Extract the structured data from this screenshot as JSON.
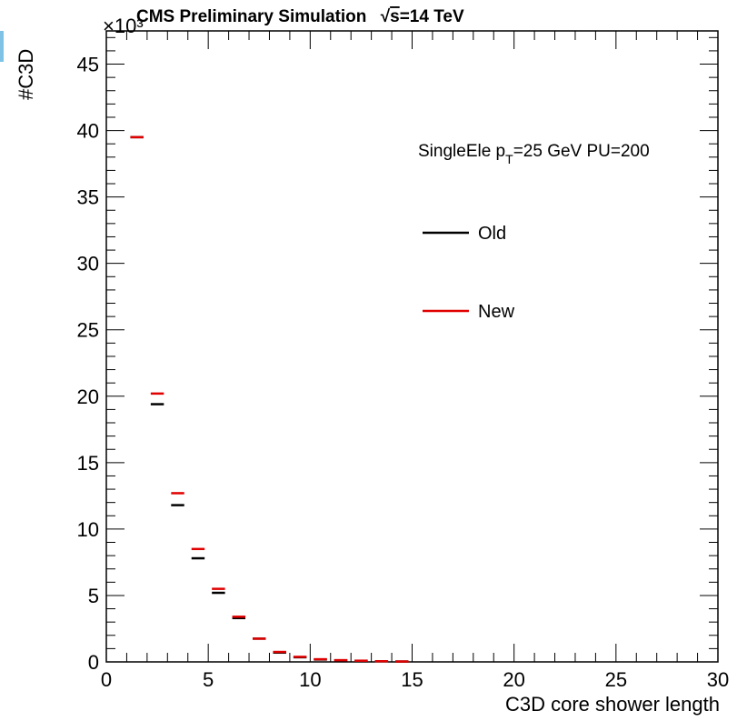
{
  "chart_data": {
    "type": "line",
    "title": "CMS Preliminary Simulation",
    "title_energy_sqrt": "s",
    "title_energy_value": "=14 TeV",
    "xlabel": "C3D core shower length",
    "ylabel": "#C3D",
    "y_multiplier": "×10³",
    "xlim": [
      0,
      30
    ],
    "ylim": [
      0,
      47.5
    ],
    "x_ticks": [
      0,
      5,
      10,
      15,
      20,
      25,
      30
    ],
    "y_ticks": [
      0,
      5,
      10,
      15,
      20,
      25,
      30,
      35,
      40,
      45
    ],
    "annotation": {
      "main": "SingleEle p",
      "sub": "T",
      "rest": "=25 GeV PU=200"
    },
    "legend_position": "top-right",
    "bins": [
      [
        1,
        2
      ],
      [
        2,
        3
      ],
      [
        3,
        4
      ],
      [
        4,
        5
      ],
      [
        5,
        6
      ],
      [
        6,
        7
      ],
      [
        7,
        8
      ],
      [
        8,
        9
      ],
      [
        9,
        10
      ],
      [
        10,
        11
      ],
      [
        11,
        12
      ],
      [
        12,
        13
      ],
      [
        13,
        14
      ],
      [
        14,
        15
      ]
    ],
    "series": [
      {
        "name": "Old",
        "color": "#000000",
        "values": [
          39.5,
          19.4,
          11.8,
          7.8,
          5.2,
          3.3,
          1.75,
          0.7,
          0.35,
          0.18,
          0.12,
          0.08,
          0.05,
          0.03
        ]
      },
      {
        "name": "New",
        "color": "#e00000",
        "values": [
          39.5,
          20.2,
          12.7,
          8.5,
          5.5,
          3.4,
          1.75,
          0.75,
          0.38,
          0.2,
          0.13,
          0.09,
          0.05,
          0.03
        ]
      }
    ]
  }
}
